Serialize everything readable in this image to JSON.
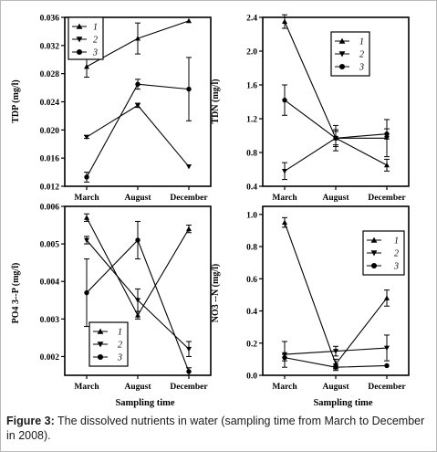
{
  "figure": {
    "caption_label": "Figure 3:",
    "caption_text": " The dissolved nutrients in water (sampling time from March to December in 2008)."
  },
  "chart_data": [
    {
      "type": "line",
      "panel": "top-left",
      "ylabel": "TDP (mg/l)",
      "xlabel": "",
      "categories": [
        "March",
        "August",
        "December"
      ],
      "ylim": [
        0.012,
        0.036
      ],
      "yticks": [
        "0.012",
        "0.016",
        "0.020",
        "0.024",
        "0.028",
        "0.032",
        "0.036"
      ],
      "legend": {
        "position": "top-left",
        "entries": [
          "1",
          "2",
          "3"
        ]
      },
      "series": [
        {
          "name": "1",
          "marker": "triangle-up",
          "values": [
            0.029,
            0.033,
            0.0355
          ],
          "errors": [
            0.0015,
            0.0022,
            0
          ]
        },
        {
          "name": "2",
          "marker": "triangle-down",
          "values": [
            0.019,
            0.0235,
            0.0148
          ],
          "errors": [
            0.0002,
            0.0003,
            0
          ]
        },
        {
          "name": "3",
          "marker": "circle",
          "values": [
            0.0133,
            0.0265,
            0.0258
          ],
          "errors": [
            0.0007,
            0.0007,
            0.0045
          ]
        }
      ]
    },
    {
      "type": "line",
      "panel": "top-right",
      "ylabel": "TDN (mg/l)",
      "xlabel": "",
      "categories": [
        "March",
        "August",
        "December"
      ],
      "ylim": [
        0.4,
        2.4
      ],
      "yticks": [
        "0.4",
        "0.8",
        "1.2",
        "1.6",
        "2.0",
        "2.4"
      ],
      "legend": {
        "position": "top-right",
        "entries": [
          "1",
          "2",
          "3"
        ]
      },
      "series": [
        {
          "name": "1",
          "marker": "triangle-up",
          "values": [
            2.35,
            0.97,
            0.65
          ],
          "errors": [
            0.08,
            0.1,
            0.07
          ]
        },
        {
          "name": "2",
          "marker": "triangle-down",
          "values": [
            0.58,
            0.97,
            0.97
          ],
          "errors": [
            0.1,
            0.15,
            0.22
          ]
        },
        {
          "name": "3",
          "marker": "circle",
          "values": [
            1.42,
            0.97,
            1.02
          ],
          "errors": [
            0.18,
            0.08,
            0.06
          ]
        }
      ]
    },
    {
      "type": "line",
      "panel": "bottom-left",
      "ylabel": "PO4 3--P (mg/l)",
      "xlabel": "Sampling time",
      "categories": [
        "March",
        "August",
        "December"
      ],
      "ylim": [
        0.0015,
        0.006
      ],
      "yticks": [
        "0.002",
        "0.003",
        "0.004",
        "0.005",
        "0.006"
      ],
      "legend": {
        "position": "bottom-left",
        "entries": [
          "1",
          "2",
          "3"
        ]
      },
      "series": [
        {
          "name": "1",
          "marker": "triangle-up",
          "values": [
            0.0057,
            0.0031,
            0.0054
          ],
          "errors": [
            0.0001,
            0.0001,
            0.0001
          ]
        },
        {
          "name": "2",
          "marker": "triangle-down",
          "values": [
            0.0051,
            0.0035,
            0.0022
          ],
          "errors": [
            0.0001,
            0.0003,
            0.0002
          ]
        },
        {
          "name": "3",
          "marker": "circle",
          "values": [
            0.0037,
            0.0051,
            0.0016
          ],
          "errors": [
            0.0009,
            0.0005,
            0.0001
          ]
        }
      ]
    },
    {
      "type": "line",
      "panel": "bottom-right",
      "ylabel": "NO3 --N (mg/l)",
      "xlabel": "Sampling time",
      "categories": [
        "March",
        "August",
        "December"
      ],
      "ylim": [
        0,
        1.05
      ],
      "yticks": [
        "0.0",
        "0.2",
        "0.4",
        "0.6",
        "0.8",
        "1.0"
      ],
      "legend": {
        "position": "top-right",
        "entries": [
          "1",
          "2",
          "3"
        ]
      },
      "series": [
        {
          "name": "1",
          "marker": "triangle-up",
          "values": [
            0.95,
            0.07,
            0.48
          ],
          "errors": [
            0.03,
            0.03,
            0.05
          ]
        },
        {
          "name": "2",
          "marker": "triangle-down",
          "values": [
            0.13,
            0.15,
            0.17
          ],
          "errors": [
            0.08,
            0.03,
            0.08
          ]
        },
        {
          "name": "3",
          "marker": "circle",
          "values": [
            0.11,
            0.05,
            0.06
          ],
          "errors": [
            0.02,
            0.02,
            0
          ]
        }
      ]
    }
  ]
}
